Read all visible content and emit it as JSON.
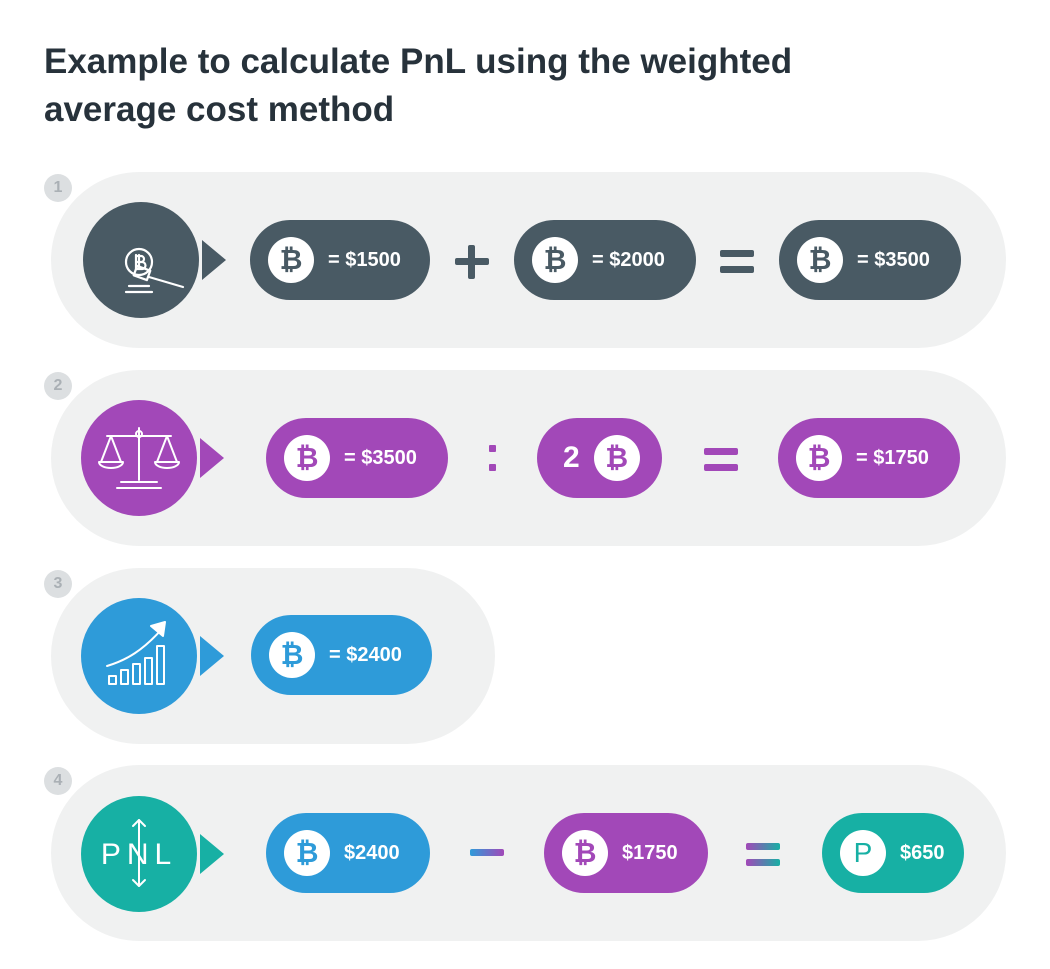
{
  "title_lines": [
    "Example to calculate PnL using the weighted",
    "average cost method"
  ],
  "colors": {
    "dark": "#495a64",
    "purple": "#a248b8",
    "blue": "#2e9bd9",
    "teal": "#17b0a4",
    "row_bg": "#f0f1f1"
  },
  "coin_symbol": "₿",
  "rows": [
    {
      "number": "1",
      "icon": "auction-gavel-icon",
      "pills": [
        "= $1500",
        "= $2000",
        "= $3500"
      ],
      "operators": [
        "+",
        "="
      ]
    },
    {
      "number": "2",
      "icon": "balance-scale-icon",
      "pills": [
        "= $3500",
        "2",
        "= $1750"
      ],
      "operators": [
        ":",
        "="
      ]
    },
    {
      "number": "3",
      "icon": "growth-chart-icon",
      "pills": [
        "= $2400"
      ],
      "operators": []
    },
    {
      "number": "4",
      "icon": "pnl-icon",
      "icon_label": "PNL",
      "pills": [
        "$2400",
        "$1750",
        "$650"
      ],
      "profit_symbol": "P",
      "operators": [
        "−",
        "="
      ]
    }
  ]
}
